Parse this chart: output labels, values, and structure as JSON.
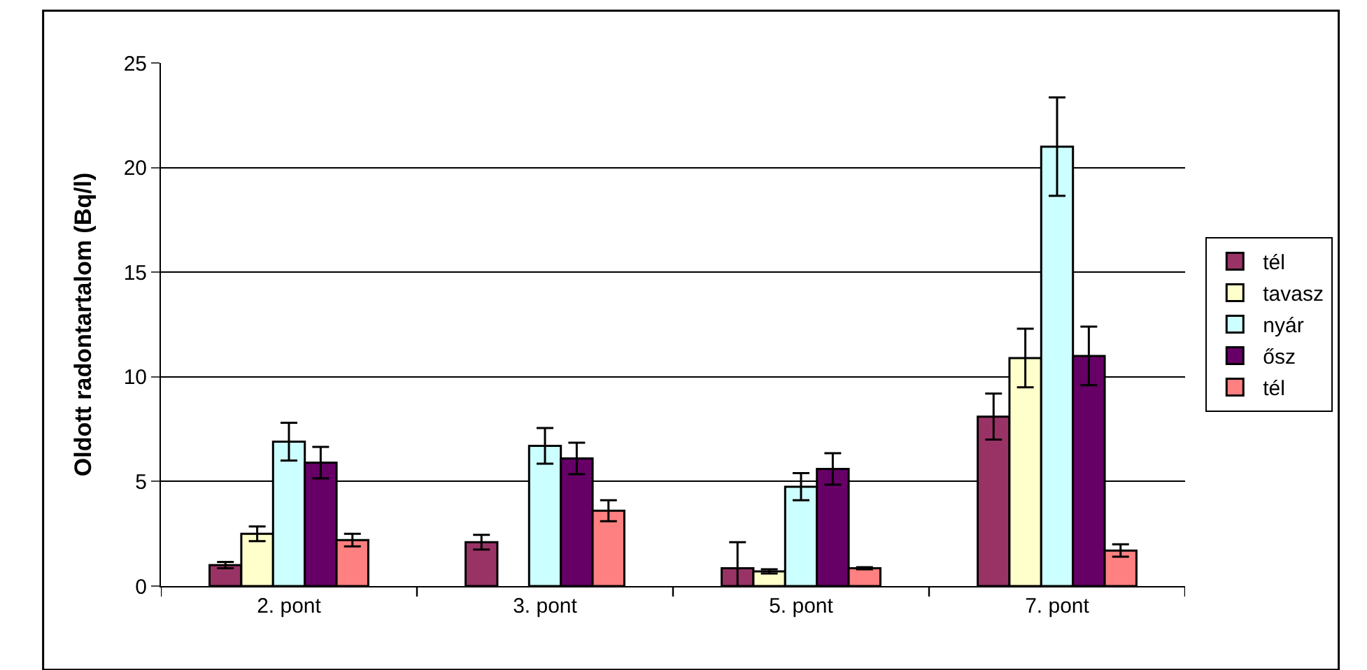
{
  "chart_data": {
    "type": "bar",
    "ylabel": "Oldott radontartalom (Bq/l)",
    "categories": [
      "2. pont",
      "3. pont",
      "5. pont",
      "7. pont"
    ],
    "series": [
      {
        "name": "tél",
        "color": "#993366",
        "values": [
          1.0,
          2.1,
          0.85,
          8.1
        ],
        "errors": [
          0.15,
          0.35,
          1.25,
          1.1
        ]
      },
      {
        "name": "tavasz",
        "color": "#ffffcc",
        "values": [
          2.5,
          null,
          0.7,
          10.9
        ],
        "errors": [
          0.35,
          null,
          0.1,
          1.4
        ]
      },
      {
        "name": "nyár",
        "color": "#ccffff",
        "values": [
          6.9,
          6.7,
          4.75,
          21.0
        ],
        "errors": [
          0.9,
          0.85,
          0.65,
          2.35
        ]
      },
      {
        "name": "ősz",
        "color": "#660066",
        "values": [
          5.9,
          6.1,
          5.6,
          11.0
        ],
        "errors": [
          0.75,
          0.75,
          0.75,
          1.4
        ]
      },
      {
        "name": "tél",
        "color": "#ff8080",
        "values": [
          2.2,
          3.6,
          0.85,
          1.7
        ],
        "errors": [
          0.3,
          0.5,
          0.05,
          0.3
        ]
      }
    ],
    "ylim": [
      0,
      25
    ],
    "yticks": [
      0,
      5,
      10,
      15,
      20,
      25
    ],
    "grid": "y",
    "legend": "right"
  }
}
